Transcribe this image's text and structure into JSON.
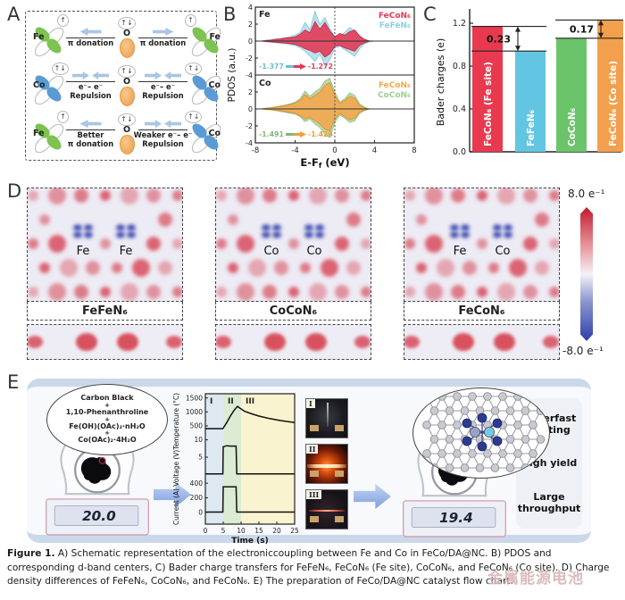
{
  "figure_caption": {
    "prefix": "Figure 1.",
    "text": " A) Schematic representation of the electroniccoupling between Fe and Co in FeCo/DA@NC. B) PDOS and corresponding d-band centers, C) Bader charge transfers for FeFeN₆, FeCoN₆ (Fe site), CoCoN₆, and FeCoN₆ (Co site). D) Charge density differences of FeFeN₆, CoCoN₆, and FeCoN₆. E) The preparation of FeCo/DA@NC catalyst flow chart."
  },
  "watermark": "金属能源电池",
  "panels": {
    "a": {
      "label": "A",
      "rows": [
        {
          "left": {
            "element": "Fe",
            "spin": "↑",
            "color": "#7cc34f"
          },
          "left_arrow": "left",
          "left_text_l1": "π donation",
          "left_text_l2": "",
          "center": {
            "element": "O",
            "spin": "↑↓"
          },
          "right_arrow": "right",
          "right_text_l1": "π donation",
          "right_text_l2": "",
          "right": {
            "element": "Fe",
            "spin": "↑",
            "color": "#7cc34f"
          }
        },
        {
          "left": {
            "element": "Co",
            "spin": "↑↓",
            "color": "#5b9bd5"
          },
          "left_arrow": "inward",
          "left_text_l1": "e⁻– e⁻",
          "left_text_l2": "Repulsion",
          "center": {
            "element": "O",
            "spin": "↑↓"
          },
          "right_arrow": "inward",
          "right_text_l1": "e⁻– e⁻",
          "right_text_l2": "Repulsion",
          "right": {
            "element": "Co",
            "spin": "↑↓",
            "color": "#5b9bd5"
          }
        },
        {
          "left": {
            "element": "Fe",
            "spin": "↑",
            "color": "#7cc34f"
          },
          "left_arrow": "left",
          "left_text_l1": "Better",
          "left_text_l2": "π donation",
          "center": {
            "element": "O",
            "spin": "↑↓"
          },
          "right_arrow": "inward",
          "right_text_l1": "Weaker e⁻– e⁻",
          "right_text_l2": "Repulsion",
          "right": {
            "element": "Co",
            "spin": "↑↓",
            "color": "#5b9bd5"
          }
        }
      ]
    },
    "b": {
      "label": "B"
    },
    "c": {
      "label": "C"
    },
    "d": {
      "label": "D",
      "maps": [
        {
          "title": "FeFeN₆",
          "atom1": "Fe",
          "atom2": "Fe"
        },
        {
          "title": "CoCoN₆",
          "atom1": "Co",
          "atom2": "Co"
        },
        {
          "title": "FeCoN₆",
          "atom1": "Fe",
          "atom2": "Co"
        }
      ],
      "colorbar": {
        "max": "8.0 e⁻¹",
        "min": "-8.0 e⁻¹",
        "top_color": "#c31a2e",
        "bottom_color": "#2d3fa8"
      }
    },
    "e": {
      "label": "E",
      "reagents": [
        "Carbon Black",
        "+",
        "1,10-Phenanthroline",
        "+",
        "Fe(OH)(OAc)₂·nH₂O",
        "+",
        "Co(OAc)₂·4H₂O"
      ],
      "scale_before": "20.0",
      "scale_after": "19.4",
      "photo_labels": [
        "I",
        "II",
        "III"
      ],
      "benefits": [
        "Superfast heating",
        "High yield",
        "Large throughput"
      ]
    }
  },
  "chart_data": [
    {
      "id": "pdos_fe",
      "type": "area",
      "tag": "Fe",
      "ylabel": "PDOS (a.u.)",
      "ylim": [
        -4,
        4
      ],
      "yticks": [
        4,
        2,
        0,
        -2
      ],
      "xlim": [
        -8,
        8
      ],
      "x": [
        -8,
        -7.5,
        -7,
        -6.5,
        -6,
        -5.5,
        -5,
        -4.5,
        -4,
        -3.5,
        -3,
        -2.5,
        -2,
        -1.5,
        -1,
        -0.5,
        0,
        0.5,
        1,
        1.5,
        2,
        2.5,
        3,
        3.5,
        4,
        4.5,
        5,
        6,
        7,
        8
      ],
      "series": [
        {
          "name": "FeFeN₆",
          "color": "#b9e0ec",
          "stroke": "#84c6da",
          "opacity": 1,
          "up": [
            0,
            0,
            0.1,
            0.15,
            0.25,
            0.3,
            0.4,
            0.5,
            0.7,
            1.0,
            2.2,
            1.4,
            3.5,
            2.0,
            2.8,
            1.5,
            0.5,
            0.6,
            1.0,
            1.6,
            1.2,
            0.5,
            0.2,
            0.05,
            0,
            0,
            0,
            0,
            0,
            0
          ],
          "down": [
            0,
            0,
            -0.05,
            -0.1,
            -0.2,
            -0.25,
            -0.3,
            -0.4,
            -0.5,
            -0.8,
            -1.2,
            -1.8,
            -2.4,
            -1.5,
            -2.9,
            -2.2,
            -0.8,
            -0.6,
            -1.0,
            -1.4,
            -1.8,
            -0.9,
            -0.3,
            -0.1,
            0,
            0,
            0,
            0,
            0,
            0
          ]
        },
        {
          "name": "FeCoN₆",
          "color": "#e23b55",
          "stroke": "#c22845",
          "opacity": 0.9,
          "up": [
            0,
            0,
            0.05,
            0.1,
            0.2,
            0.25,
            0.35,
            0.4,
            0.5,
            0.8,
            1.3,
            1.0,
            2.3,
            1.4,
            2.2,
            1.2,
            0.5,
            0.9,
            0.7,
            1.1,
            1.3,
            0.6,
            0.2,
            0,
            0,
            0,
            0,
            0,
            0,
            0
          ],
          "down": [
            0,
            0,
            -0.05,
            -0.1,
            -0.15,
            -0.2,
            -0.25,
            -0.3,
            -0.4,
            -0.6,
            -0.9,
            -1.1,
            -1.4,
            -1.2,
            -1.9,
            -1.5,
            -0.6,
            -0.5,
            -0.8,
            -1.0,
            -1.2,
            -0.5,
            -0.2,
            0,
            0,
            0,
            0,
            0,
            0,
            0
          ]
        }
      ],
      "legend": [
        {
          "label": "FeCoN₆",
          "color": "#e23b55"
        },
        {
          "label": "FeFeN₆",
          "color": "#8fcde0"
        }
      ],
      "dband_annotation": {
        "from": "-1.377",
        "to": "-1.272",
        "from_color": "#6fbcd2",
        "to_color": "#e23b55"
      }
    },
    {
      "id": "pdos_co",
      "type": "area",
      "tag": "Co",
      "xlabel": {
        "pre": "E-F",
        "sub": "f",
        "post": " (eV)"
      },
      "ylim": [
        -4,
        4
      ],
      "yticks": [
        2,
        0,
        -2,
        -4
      ],
      "xlim": [
        -8,
        8
      ],
      "xticks": [
        -8,
        -4,
        0,
        4,
        8
      ],
      "x": [
        -8,
        -7.5,
        -7,
        -6.5,
        -6,
        -5.5,
        -5,
        -4.5,
        -4,
        -3.5,
        -3,
        -2.5,
        -2,
        -1.5,
        -1,
        -0.5,
        0,
        0.5,
        1,
        1.5,
        2,
        2.5,
        3,
        3.5,
        4,
        4.5,
        5,
        6,
        7,
        8
      ],
      "series": [
        {
          "name": "CoCoN₆",
          "color": "#b8dcab",
          "stroke": "#8cc080",
          "opacity": 1,
          "up": [
            0,
            0,
            0.1,
            0.15,
            0.25,
            0.35,
            0.45,
            0.6,
            0.8,
            1.2,
            2.1,
            1.5,
            2.0,
            2.4,
            3.3,
            3.6,
            2.0,
            0.8,
            1.2,
            1.9,
            1.6,
            0.6,
            0.2,
            0,
            0,
            0,
            0,
            0,
            0,
            0
          ],
          "down": [
            0,
            0,
            -0.05,
            -0.1,
            -0.2,
            -0.3,
            -0.4,
            -0.5,
            -0.6,
            -0.9,
            -1.5,
            -1.2,
            -1.8,
            -2.2,
            -3.0,
            -3.4,
            -1.6,
            -0.7,
            -1.1,
            -1.6,
            -1.4,
            -0.5,
            -0.2,
            0,
            0,
            0,
            0,
            0,
            0,
            0
          ]
        },
        {
          "name": "FeCoN₆",
          "color": "#f3a74f",
          "stroke": "#db8c33",
          "opacity": 0.9,
          "up": [
            0,
            0,
            0.05,
            0.1,
            0.2,
            0.3,
            0.4,
            0.5,
            0.7,
            1.0,
            1.7,
            1.2,
            1.6,
            2.0,
            2.8,
            3.1,
            1.6,
            0.6,
            1.0,
            1.5,
            1.3,
            0.4,
            0.1,
            0,
            0,
            0,
            0,
            0,
            0,
            0
          ],
          "down": [
            0,
            0,
            -0.05,
            -0.1,
            -0.15,
            -0.2,
            -0.3,
            -0.4,
            -0.5,
            -0.8,
            -1.2,
            -1.0,
            -1.4,
            -1.8,
            -2.4,
            -2.6,
            -1.2,
            -0.5,
            -0.9,
            -1.3,
            -1.1,
            -0.4,
            -0.1,
            0,
            0,
            0,
            0,
            0,
            0,
            0
          ]
        }
      ],
      "legend": [
        {
          "label": "FeCoN₆",
          "color": "#f3a74f"
        },
        {
          "label": "CoCoN₆",
          "color": "#9ccf8e"
        }
      ],
      "dband_annotation": {
        "from": "-1.491",
        "to": "-1.426",
        "from_color": "#7fb873",
        "to_color": "#ef9c3e"
      }
    },
    {
      "id": "bader_charges",
      "type": "bar",
      "ylabel": "Bader charges (e)",
      "ylim": [
        0,
        1.3
      ],
      "yticks": [
        0.0,
        0.4,
        0.8,
        1.2
      ],
      "categories": [
        "FeCoN₆ (Fe site)",
        "FeFeN₆",
        "CoCoN₆",
        "FeCoN₆ (Co site)"
      ],
      "values": [
        1.17,
        0.94,
        1.06,
        1.23
      ],
      "colors": [
        "#e8394f",
        "#62c6e2",
        "#6cc46a",
        "#f2a04e"
      ],
      "annotations": [
        {
          "between": [
            0,
            1
          ],
          "label": "0.23"
        },
        {
          "between": [
            2,
            3
          ],
          "label": "0.17"
        }
      ]
    },
    {
      "id": "flash_heating",
      "type": "line",
      "xlabel": "Time (s)",
      "xlim": [
        0,
        25
      ],
      "xticks": [
        0,
        5,
        10,
        15,
        20,
        25
      ],
      "ylabel": "Current (A) Voltage (V)Temperature (°C)",
      "regions": [
        {
          "label": "I",
          "x0": 0,
          "x1": 5,
          "color": "#dde8f1"
        },
        {
          "label": "II",
          "x0": 5,
          "x1": 10,
          "color": "#dcecd4"
        },
        {
          "label": "III",
          "x0": 10,
          "x1": 25,
          "color": "#faf3cf"
        }
      ],
      "sections": [
        {
          "name": "Temperature (°C)",
          "ticks": [
            1500,
            1000,
            500
          ],
          "range": [
            250,
            1650
          ],
          "band": [
            0.0,
            0.3
          ]
        },
        {
          "name": "Voltage (V)",
          "ticks": [
            10,
            5
          ],
          "range": [
            0,
            12
          ],
          "band": [
            0.3,
            0.62
          ]
        },
        {
          "name": "Current (A)",
          "ticks": [
            400,
            200,
            0
          ],
          "range": [
            0,
            500
          ],
          "band": [
            0.63,
            0.91
          ]
        }
      ],
      "series": [
        {
          "name": "Temperature",
          "section": 0,
          "points": [
            [
              0,
              400
            ],
            [
              4.8,
              400
            ],
            [
              5,
              420
            ],
            [
              6,
              620
            ],
            [
              7,
              850
            ],
            [
              8,
              1050
            ],
            [
              9,
              1200
            ],
            [
              9.5,
              1150
            ],
            [
              11,
              1020
            ],
            [
              13,
              930
            ],
            [
              15,
              850
            ],
            [
              18,
              760
            ],
            [
              21,
              690
            ],
            [
              25,
              620
            ]
          ]
        },
        {
          "name": "Voltage",
          "section": 1,
          "points": [
            [
              0,
              0.2
            ],
            [
              4.9,
              0.2
            ],
            [
              5,
              8
            ],
            [
              6,
              8.3
            ],
            [
              7,
              8.2
            ],
            [
              8.6,
              8.2
            ],
            [
              8.8,
              0.2
            ],
            [
              25,
              0.2
            ]
          ]
        },
        {
          "name": "Current",
          "section": 2,
          "points": [
            [
              0,
              5
            ],
            [
              4.9,
              5
            ],
            [
              5,
              350
            ],
            [
              8.6,
              350
            ],
            [
              8.8,
              5
            ],
            [
              25,
              5
            ]
          ]
        }
      ]
    }
  ]
}
